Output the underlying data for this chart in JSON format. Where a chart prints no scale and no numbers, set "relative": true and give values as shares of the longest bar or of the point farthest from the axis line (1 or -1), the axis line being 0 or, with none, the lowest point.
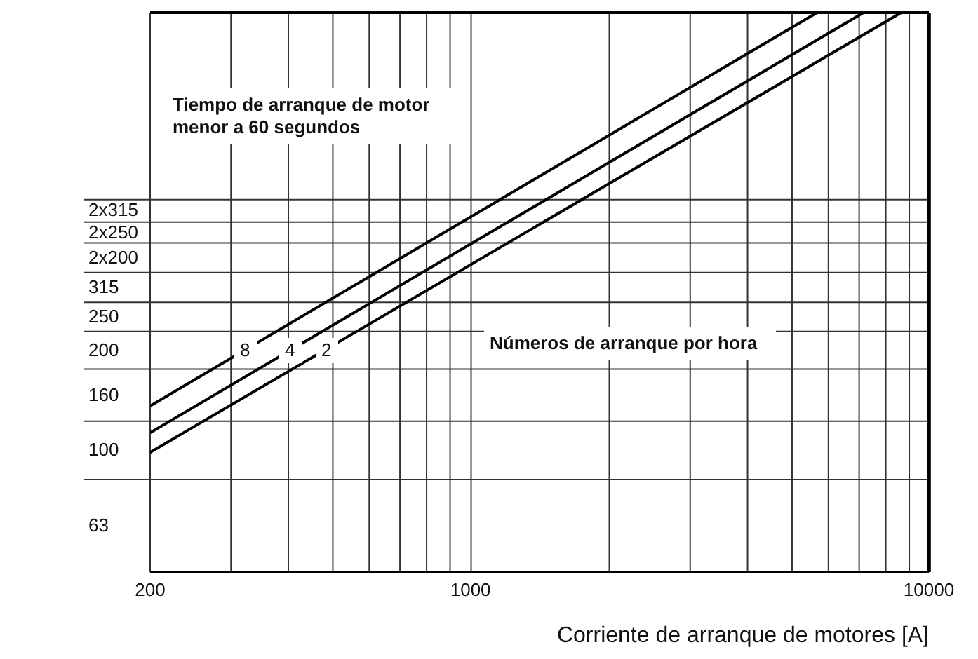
{
  "chart_data": {
    "type": "line",
    "xlabel": "Corriente de arranque de motores [A]",
    "log": "x",
    "grid": true,
    "legend": false,
    "marker": "none",
    "line_style": "solid",
    "relative": true,
    "xlim": [
      200,
      10000
    ],
    "xticks": [
      200,
      {
        "value": 300,
        "label": null
      },
      {
        "value": 400,
        "label": null
      },
      {
        "value": 500,
        "label": null
      },
      {
        "value": 600,
        "label": null
      },
      {
        "value": 700,
        "label": null
      },
      {
        "value": 800,
        "label": null
      },
      {
        "value": 900,
        "label": null
      },
      1000,
      {
        "value": 2000,
        "label": null
      },
      {
        "value": 3000,
        "label": null
      },
      {
        "value": 4000,
        "label": null
      },
      {
        "value": 5000,
        "label": null
      },
      {
        "value": 6000,
        "label": null
      },
      {
        "value": 7000,
        "label": null
      },
      {
        "value": 8000,
        "label": null
      },
      {
        "value": 9000,
        "label": null
      },
      10000
    ],
    "series": [
      {
        "color": "#000000",
        "x": [
          200,
          5700
        ],
        "values": [
          0.297,
          1
        ]
      },
      {
        "color": "#000000",
        "x": [
          200,
          7200
        ],
        "values": [
          0.249,
          1
        ]
      },
      {
        "color": "#000000",
        "x": [
          200,
          8700
        ],
        "values": [
          0.214,
          1
        ]
      }
    ],
    "annotations": [
      "Tiempo de arranque de motor menor a 60 segundos",
      "Números de arranque por hora",
      "63",
      "100",
      "160",
      "200",
      "250",
      "315",
      "2x200",
      "2x250",
      "2x315",
      {
        "text": "8",
        "x": 322,
        "y": 0.395
      },
      {
        "text": "4",
        "x": 403,
        "y": 0.395
      },
      {
        "text": "2",
        "x": 484,
        "y": 0.395
      }
    ]
  }
}
